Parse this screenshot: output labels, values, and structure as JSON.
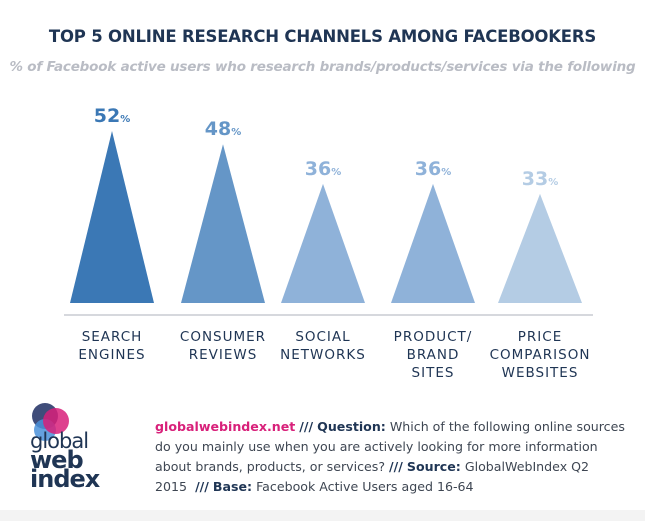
{
  "chart_data": {
    "type": "bar",
    "title": "TOP 5 ONLINE RESEARCH CHANNELS AMONG FACEBOOKERS",
    "subtitle": "% of Facebook active users who research brands/products/services via the following",
    "categories": [
      [
        "SEARCH",
        "ENGINES"
      ],
      [
        "CONSUMER",
        "REVIEWS"
      ],
      [
        "SOCIAL",
        "NETWORKS"
      ],
      [
        "PRODUCT/",
        "BRAND",
        "SITES"
      ],
      [
        "PRICE",
        "COMPARISON",
        "WEBSITES"
      ]
    ],
    "values": [
      52,
      48,
      36,
      36,
      33
    ],
    "unit": "%",
    "colors": [
      "#3b78b5",
      "#6596c7",
      "#8fb2d9",
      "#8fb2d9",
      "#b4cce4"
    ],
    "ylim": [
      0,
      52
    ],
    "grid": false
  },
  "logo": {
    "line1": "global",
    "line2": "web",
    "line3": "index",
    "colors": [
      "#1f3554",
      "#4a90d9",
      "#d8207a"
    ]
  },
  "footer": {
    "site": "globalwebindex.net",
    "sep": "///",
    "question_label": "Question:",
    "question": "Which of the following online sources do you mainly use when you are actively looking for more information about brands, products, or services?",
    "source_label": "Source:",
    "source": "GlobalWebIndex Q2 2015",
    "base_label": "Base:",
    "base": "Facebook Active Users aged 16-64"
  }
}
